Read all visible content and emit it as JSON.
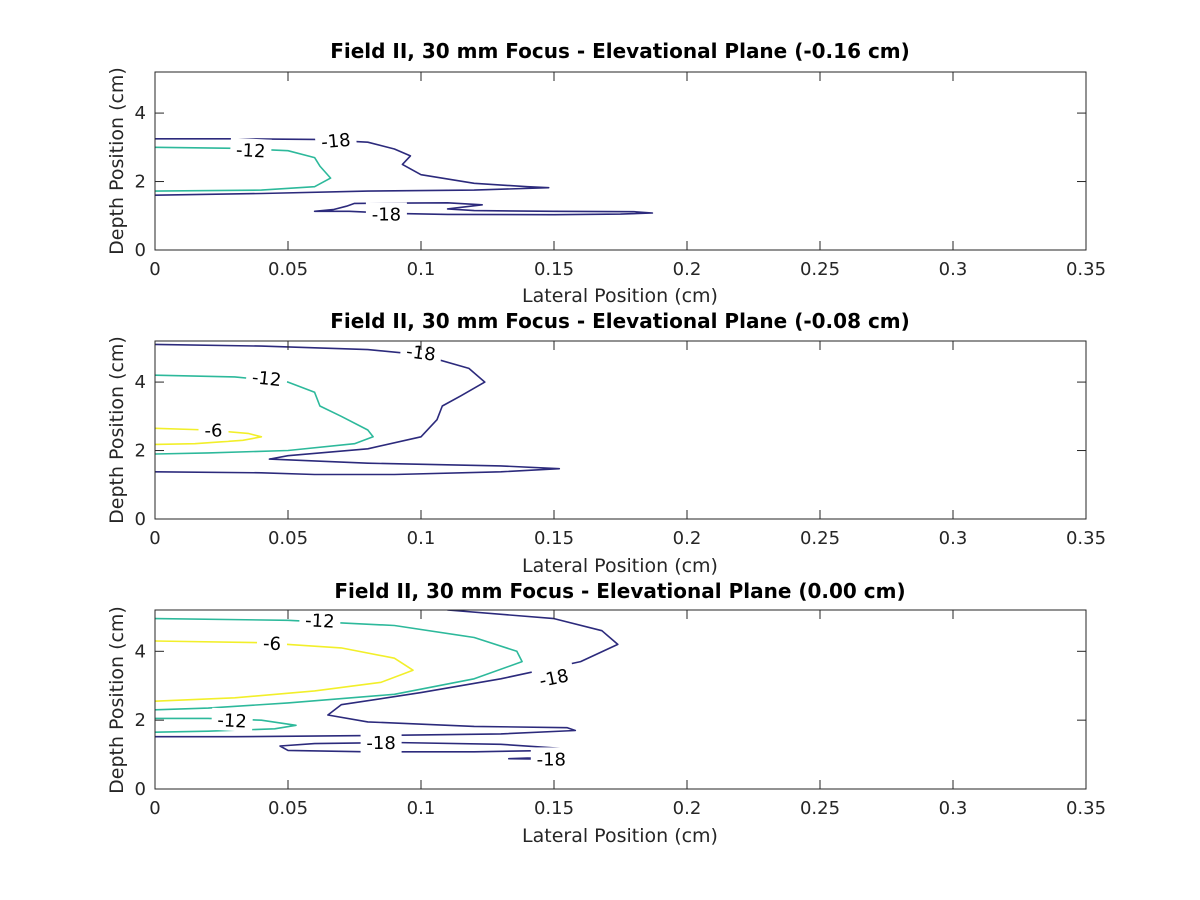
{
  "colors": {
    "-18": "#2c2a7c",
    "-12": "#2db99b",
    "-6": "#f2ef2a",
    "axis": "#262626",
    "background": "#ffffff"
  },
  "chart_data": [
    {
      "type": "contour",
      "title": "Field II, 30 mm Focus - Elevational Plane (-0.16 cm)",
      "xlabel": "Lateral Position (cm)",
      "ylabel": "Depth Position (cm)",
      "xlim": [
        0,
        0.35
      ],
      "ylim": [
        0,
        5.2
      ],
      "xticks": [
        0,
        0.05,
        0.1,
        0.15,
        0.2,
        0.25,
        0.3,
        0.35
      ],
      "xtick_labels": [
        "0",
        "0.05",
        "0.1",
        "0.15",
        "0.2",
        "0.25",
        "0.3",
        "0.35"
      ],
      "yticks": [
        0,
        2,
        4
      ],
      "ytick_labels": [
        "0",
        "2",
        "4"
      ],
      "contours": [
        {
          "level": -18,
          "points": [
            [
              0,
              3.25
            ],
            [
              0.03,
              3.25
            ],
            [
              0.06,
              3.23
            ],
            [
              0.08,
              3.15
            ],
            [
              0.09,
              2.95
            ],
            [
              0.096,
              2.75
            ],
            [
              0.093,
              2.5
            ],
            [
              0.1,
              2.2
            ],
            [
              0.12,
              1.95
            ],
            [
              0.14,
              1.85
            ],
            [
              0.148,
              1.82
            ],
            [
              0.12,
              1.75
            ],
            [
              0.08,
              1.72
            ],
            [
              0.04,
              1.65
            ],
            [
              0,
              1.6
            ]
          ]
        },
        {
          "level": -18,
          "points": [
            [
              0.073,
              1.13
            ],
            [
              0.09,
              1.07
            ],
            [
              0.11,
              1.04
            ],
            [
              0.15,
              1.03
            ],
            [
              0.175,
              1.05
            ],
            [
              0.187,
              1.08
            ],
            [
              0.18,
              1.12
            ],
            [
              0.15,
              1.13
            ],
            [
              0.12,
              1.15
            ],
            [
              0.11,
              1.2
            ],
            [
              0.123,
              1.32
            ],
            [
              0.11,
              1.38
            ],
            [
              0.075,
              1.36
            ],
            [
              0.072,
              1.28
            ],
            [
              0.067,
              1.18
            ],
            [
              0.06,
              1.13
            ],
            [
              0.073,
              1.13
            ]
          ]
        },
        {
          "level": -12,
          "points": [
            [
              0,
              3.0
            ],
            [
              0.03,
              2.97
            ],
            [
              0.05,
              2.9
            ],
            [
              0.06,
              2.7
            ],
            [
              0.062,
              2.45
            ],
            [
              0.066,
              2.1
            ],
            [
              0.06,
              1.85
            ],
            [
              0.04,
              1.75
            ],
            [
              0,
              1.72
            ]
          ]
        }
      ],
      "labels": [
        {
          "text": "-18",
          "x": 0.068,
          "y": 3.18,
          "rotation": -5
        },
        {
          "text": "-18",
          "x": 0.087,
          "y": 1.04,
          "rotation": 0
        },
        {
          "text": "-12",
          "x": 0.036,
          "y": 2.9,
          "rotation": 3
        }
      ]
    },
    {
      "type": "contour",
      "title": "Field II, 30 mm Focus - Elevational Plane (-0.08 cm)",
      "xlabel": "Lateral Position (cm)",
      "ylabel": "Depth Position (cm)",
      "xlim": [
        0,
        0.35
      ],
      "ylim": [
        0,
        5.2
      ],
      "xticks": [
        0,
        0.05,
        0.1,
        0.15,
        0.2,
        0.25,
        0.3,
        0.35
      ],
      "xtick_labels": [
        "0",
        "0.05",
        "0.1",
        "0.15",
        "0.2",
        "0.25",
        "0.3",
        "0.35"
      ],
      "yticks": [
        0,
        2,
        4
      ],
      "ytick_labels": [
        "0",
        "2",
        "4"
      ],
      "contours": [
        {
          "level": -18,
          "points": [
            [
              0,
              5.1
            ],
            [
              0.04,
              5.05
            ],
            [
              0.08,
              4.95
            ],
            [
              0.1,
              4.8
            ],
            [
              0.118,
              4.4
            ],
            [
              0.124,
              4.0
            ],
            [
              0.115,
              3.6
            ],
            [
              0.108,
              3.3
            ],
            [
              0.106,
              2.9
            ],
            [
              0.1,
              2.4
            ],
            [
              0.08,
              2.05
            ],
            [
              0.05,
              1.85
            ],
            [
              0.043,
              1.75
            ],
            [
              0.08,
              1.63
            ],
            [
              0.13,
              1.55
            ],
            [
              0.152,
              1.47
            ],
            [
              0.13,
              1.38
            ],
            [
              0.09,
              1.3
            ],
            [
              0.06,
              1.3
            ],
            [
              0.04,
              1.35
            ],
            [
              0,
              1.38
            ]
          ]
        },
        {
          "level": -12,
          "points": [
            [
              0,
              4.2
            ],
            [
              0.03,
              4.15
            ],
            [
              0.05,
              4.0
            ],
            [
              0.06,
              3.7
            ],
            [
              0.062,
              3.3
            ],
            [
              0.07,
              3.0
            ],
            [
              0.08,
              2.6
            ],
            [
              0.082,
              2.4
            ],
            [
              0.075,
              2.2
            ],
            [
              0.05,
              2.0
            ],
            [
              0.02,
              1.93
            ],
            [
              0,
              1.9
            ]
          ]
        },
        {
          "level": -6,
          "points": [
            [
              0,
              2.65
            ],
            [
              0.02,
              2.6
            ],
            [
              0.035,
              2.5
            ],
            [
              0.04,
              2.4
            ],
            [
              0.033,
              2.3
            ],
            [
              0.015,
              2.2
            ],
            [
              0,
              2.18
            ]
          ]
        }
      ],
      "labels": [
        {
          "text": "-18",
          "x": 0.1,
          "y": 4.85,
          "rotation": 7
        },
        {
          "text": "-12",
          "x": 0.042,
          "y": 4.1,
          "rotation": 6
        },
        {
          "text": "-6",
          "x": 0.022,
          "y": 2.58,
          "rotation": 0
        }
      ]
    },
    {
      "type": "contour",
      "title": "Field II, 30 mm Focus - Elevational Plane (0.00 cm)",
      "xlabel": "Lateral Position (cm)",
      "ylabel": "Depth Position (cm)",
      "xlim": [
        0,
        0.35
      ],
      "ylim": [
        0,
        5.2
      ],
      "xticks": [
        0,
        0.05,
        0.1,
        0.15,
        0.2,
        0.25,
        0.3,
        0.35
      ],
      "xtick_labels": [
        "0",
        "0.05",
        "0.1",
        "0.15",
        "0.2",
        "0.25",
        "0.3",
        "0.35"
      ],
      "yticks": [
        0,
        2,
        4
      ],
      "ytick_labels": [
        "0",
        "2",
        "4"
      ],
      "contours": [
        {
          "level": -18,
          "points": [
            [
              0.11,
              5.2
            ],
            [
              0.15,
              4.95
            ],
            [
              0.168,
              4.6
            ],
            [
              0.174,
              4.2
            ],
            [
              0.16,
              3.7
            ],
            [
              0.13,
              3.2
            ],
            [
              0.1,
              2.8
            ],
            [
              0.07,
              2.45
            ],
            [
              0.065,
              2.15
            ],
            [
              0.08,
              1.95
            ],
            [
              0.12,
              1.82
            ],
            [
              0.155,
              1.78
            ],
            [
              0.158,
              1.7
            ],
            [
              0.13,
              1.6
            ],
            [
              0.08,
              1.55
            ],
            [
              0.03,
              1.52
            ],
            [
              0,
              1.52
            ]
          ]
        },
        {
          "level": -18,
          "points": [
            [
              0.05,
              1.12
            ],
            [
              0.08,
              1.08
            ],
            [
              0.12,
              1.08
            ],
            [
              0.15,
              1.12
            ],
            [
              0.153,
              1.18
            ],
            [
              0.13,
              1.3
            ],
            [
              0.09,
              1.35
            ],
            [
              0.06,
              1.32
            ],
            [
              0.047,
              1.25
            ],
            [
              0.05,
              1.12
            ]
          ]
        },
        {
          "level": -18,
          "points": [
            [
              0.133,
              0.88
            ],
            [
              0.145,
              0.87
            ],
            [
              0.15,
              0.89
            ],
            [
              0.14,
              0.9
            ],
            [
              0.133,
              0.88
            ]
          ]
        },
        {
          "level": -12,
          "points": [
            [
              0,
              4.95
            ],
            [
              0.05,
              4.9
            ],
            [
              0.09,
              4.75
            ],
            [
              0.12,
              4.4
            ],
            [
              0.136,
              4.0
            ],
            [
              0.138,
              3.7
            ],
            [
              0.12,
              3.2
            ],
            [
              0.09,
              2.75
            ],
            [
              0.05,
              2.5
            ],
            [
              0.02,
              2.35
            ],
            [
              0,
              2.3
            ]
          ]
        },
        {
          "level": -12,
          "points": [
            [
              0,
              2.05
            ],
            [
              0.02,
              2.05
            ],
            [
              0.04,
              2.0
            ],
            [
              0.053,
              1.85
            ],
            [
              0.045,
              1.75
            ],
            [
              0.02,
              1.68
            ],
            [
              0,
              1.65
            ]
          ]
        },
        {
          "level": -6,
          "points": [
            [
              0,
              4.3
            ],
            [
              0.04,
              4.25
            ],
            [
              0.07,
              4.1
            ],
            [
              0.09,
              3.8
            ],
            [
              0.097,
              3.45
            ],
            [
              0.085,
              3.1
            ],
            [
              0.06,
              2.85
            ],
            [
              0.03,
              2.65
            ],
            [
              0,
              2.55
            ]
          ]
        }
      ],
      "labels": [
        {
          "text": "-12",
          "x": 0.062,
          "y": 4.88,
          "rotation": 3
        },
        {
          "text": "-6",
          "x": 0.044,
          "y": 4.22,
          "rotation": 2
        },
        {
          "text": "-18",
          "x": 0.15,
          "y": 3.22,
          "rotation": -12
        },
        {
          "text": "-12",
          "x": 0.029,
          "y": 1.98,
          "rotation": 3
        },
        {
          "text": "-18",
          "x": 0.085,
          "y": 1.33,
          "rotation": 0
        },
        {
          "text": "-18",
          "x": 0.149,
          "y": 0.86,
          "rotation": 0
        }
      ]
    }
  ]
}
